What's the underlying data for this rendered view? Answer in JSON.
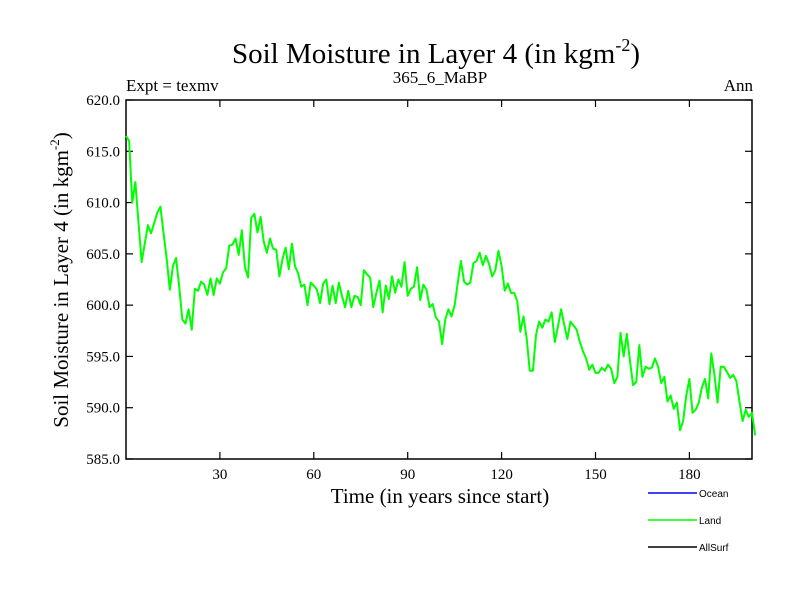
{
  "chart_data": {
    "type": "line",
    "title": "Soil Moisture in Layer 4 (in kgm",
    "title_sup": "-2",
    "title_close": ")",
    "subtitle_left": "Expt = texmv",
    "subtitle_center": "365_6_MaBP",
    "subtitle_right": "Ann",
    "xlabel": "Time (in years since start)",
    "ylabel": "Soil Moisture in Layer 4 (in kgm",
    "ylabel_sup": "-2",
    "ylabel_close": ")",
    "xlim": [
      0,
      200
    ],
    "ylim": [
      585,
      620
    ],
    "x_ticks": [
      30,
      60,
      90,
      120,
      150,
      180
    ],
    "x_tick_labels": [
      "30",
      "60",
      "90",
      "120",
      "150",
      "180"
    ],
    "y_ticks": [
      585,
      590,
      595,
      600,
      605,
      610,
      615,
      620
    ],
    "y_tick_labels": [
      "585.0",
      "590.0",
      "595.0",
      "600.0",
      "605.0",
      "610.0",
      "615.0",
      "620.0"
    ],
    "legend": [
      {
        "name": "Ocean",
        "color": "#0000ff"
      },
      {
        "name": "Land",
        "color": "#00ff00"
      },
      {
        "name": "AllSurf",
        "color": "#000000"
      }
    ],
    "series": [
      {
        "name": "Land",
        "color": "#00ff00",
        "x_start": 0,
        "x_step": 1,
        "values": [
          616.5,
          616.0,
          610.0,
          612.0,
          608.0,
          604.2,
          606.0,
          607.8,
          607.0,
          608.0,
          609.0,
          609.6,
          607.0,
          604.5,
          601.5,
          603.8,
          604.6,
          601.8,
          598.6,
          598.2,
          599.6,
          597.6,
          601.6,
          601.4,
          602.3,
          602.0,
          601.0,
          602.6,
          601.0,
          602.6,
          602.1,
          603.2,
          603.6,
          605.8,
          605.9,
          606.5,
          604.9,
          607.3,
          603.7,
          602.7,
          608.5,
          608.9,
          607.1,
          608.6,
          606.2,
          605.1,
          606.5,
          605.5,
          605.4,
          602.8,
          604.5,
          605.6,
          603.5,
          606.0,
          603.8,
          603.1,
          601.8,
          602.0,
          600.0,
          602.2,
          601.9,
          601.5,
          600.2,
          602.1,
          602.5,
          600.1,
          601.9,
          600.2,
          602.2,
          600.9,
          599.8,
          601.4,
          599.8,
          600.9,
          600.8,
          600.0,
          603.4,
          603.0,
          602.7,
          599.8,
          601.2,
          602.4,
          599.3,
          601.9,
          600.6,
          602.8,
          601.2,
          602.5,
          601.8,
          604.2,
          600.9,
          601.6,
          601.8,
          603.7,
          600.5,
          602.0,
          601.5,
          599.8,
          600.1,
          598.8,
          598.4,
          596.2,
          598.6,
          599.6,
          598.9,
          600.0,
          602.2,
          604.3,
          602.3,
          602.0,
          602.2,
          604.1,
          604.3,
          605.1,
          603.9,
          604.8,
          604.0,
          602.8,
          603.4,
          605.3,
          603.8,
          601.4,
          602.1,
          601.2,
          601.2,
          600.4,
          597.4,
          598.9,
          596.8,
          593.6,
          593.6,
          597.1,
          598.4,
          597.8,
          598.6,
          598.4,
          599.3,
          596.4,
          597.9,
          599.6,
          598.1,
          596.7,
          598.4,
          598.0,
          597.6,
          596.4,
          595.5,
          594.8,
          593.7,
          594.2,
          593.4,
          593.4,
          593.9,
          593.6,
          594.2,
          593.8,
          592.4,
          593.0,
          597.3,
          595.0,
          597.2,
          594.6,
          592.2,
          592.5,
          596.1,
          593.0,
          594.0,
          593.8,
          593.9,
          594.8,
          594.0,
          592.4,
          593.0,
          590.6,
          591.2,
          589.9,
          590.5,
          587.8,
          588.7,
          591.2,
          592.8,
          589.5,
          589.8,
          590.5,
          592.0,
          592.8,
          590.9,
          595.3,
          593.2,
          590.5,
          594.0,
          594.0,
          593.5,
          592.9,
          593.2,
          592.6,
          590.6,
          588.7,
          589.8,
          589.1,
          589.5,
          587.3
        ]
      }
    ]
  }
}
